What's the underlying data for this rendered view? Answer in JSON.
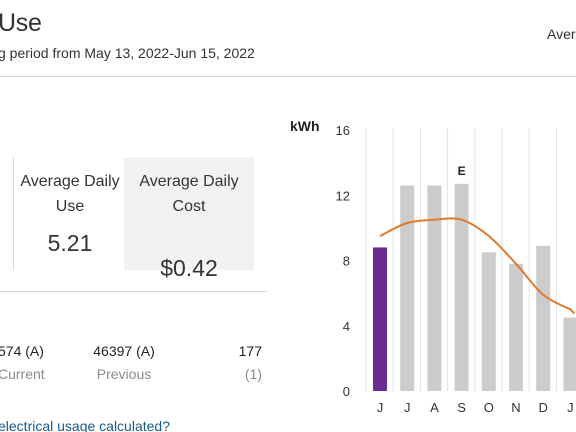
{
  "header": {
    "title": "Use",
    "subtitle": "g period from May 13, 2022-Jun 15, 2022",
    "right_label": "Avera"
  },
  "stats": {
    "avg_daily_use_label": "Average Daily Use",
    "avg_daily_use_value": "5.21",
    "avg_daily_cost_label": "Average Daily Cost",
    "avg_daily_cost_value": "$0.42"
  },
  "readings": {
    "current_value": "574 (A)",
    "current_label": "Current",
    "previous_value": "46397 (A)",
    "previous_label": "Previous",
    "days_value": "177",
    "days_label": "(1)"
  },
  "help_link": "electrical usage calculated?",
  "colors": {
    "current_bar": "#6b2c91",
    "history_bar": "#cccccc",
    "trend_line": "#e07a2f",
    "link": "#1a5a8a"
  },
  "chart_data": {
    "type": "bar",
    "ylabel": "kWh",
    "ylim": [
      0,
      16
    ],
    "yticks": [
      0,
      4,
      8,
      12,
      16
    ],
    "categories": [
      "J",
      "J",
      "A",
      "S",
      "O",
      "N",
      "D",
      "J"
    ],
    "values": [
      8.8,
      12.6,
      12.6,
      12.7,
      8.5,
      7.8,
      8.9,
      4.5
    ],
    "highlight_index": 0,
    "annotations": [
      {
        "index": 3,
        "text": "E"
      }
    ],
    "trend_line": [
      9.5,
      10.3,
      10.5,
      10.5,
      9.5,
      7.8,
      5.9,
      5.0
    ],
    "grid": "vertical"
  }
}
